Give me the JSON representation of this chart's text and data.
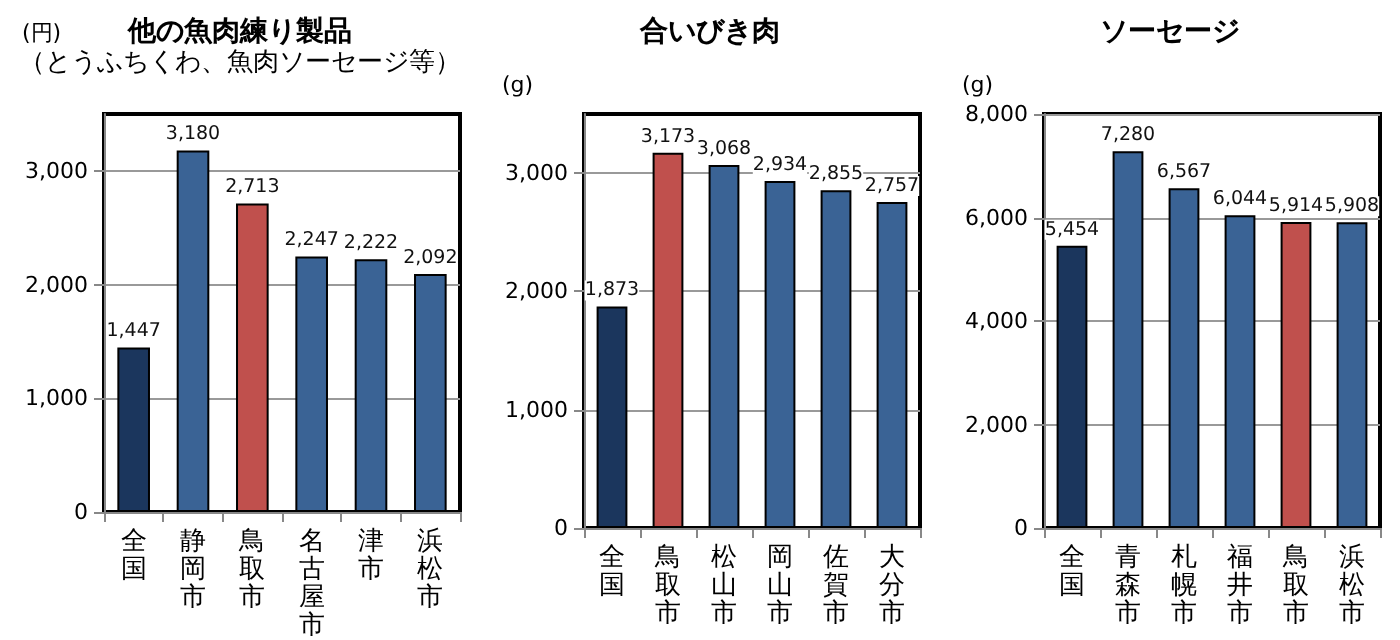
{
  "chart_data": [
    {
      "type": "bar",
      "title": "他の魚肉練り製品",
      "subtitle": "（とうふちくわ、魚肉ソーセージ等）",
      "ylabel": "(円)",
      "categories": [
        "全国",
        "静岡市",
        "鳥取市",
        "名古屋市",
        "津市",
        "浜松市"
      ],
      "values": [
        1447,
        3180,
        2713,
        2247,
        2222,
        2092
      ],
      "value_labels": [
        "1,447",
        "3,180",
        "2,713",
        "2,247",
        "2,222",
        "2,092"
      ],
      "colors": [
        "#1b365d",
        "#3a6395",
        "#c0504d",
        "#3a6395",
        "#3a6395",
        "#3a6395"
      ],
      "ylim": [
        0,
        3500
      ],
      "yticks": [
        {
          "value": 0,
          "label": "0"
        },
        {
          "value": 1000,
          "label": "1,000"
        },
        {
          "value": 2000,
          "label": "2,000"
        },
        {
          "value": 3000,
          "label": "3,000"
        }
      ],
      "grid": "y"
    },
    {
      "type": "bar",
      "title": "合いびき肉",
      "ylabel": "(g)",
      "categories": [
        "全国",
        "鳥取市",
        "松山市",
        "岡山市",
        "佐賀市",
        "大分市"
      ],
      "values": [
        1873,
        3173,
        3068,
        2934,
        2855,
        2757
      ],
      "value_labels": [
        "1,873",
        "3,173",
        "3,068",
        "2,934",
        "2,855",
        "2,757"
      ],
      "colors": [
        "#1b365d",
        "#c0504d",
        "#3a6395",
        "#3a6395",
        "#3a6395",
        "#3a6395"
      ],
      "ylim": [
        0,
        3500
      ],
      "yticks": [
        {
          "value": 0,
          "label": "0"
        },
        {
          "value": 1000,
          "label": "1,000"
        },
        {
          "value": 2000,
          "label": "2,000"
        },
        {
          "value": 3000,
          "label": "3,000"
        }
      ],
      "grid": "y"
    },
    {
      "type": "bar",
      "title": "ソーセージ",
      "ylabel": "(g)",
      "categories": [
        "全国",
        "青森市",
        "札幌市",
        "福井市",
        "鳥取市",
        "浜松市"
      ],
      "values": [
        5454,
        7280,
        6567,
        6044,
        5914,
        5908
      ],
      "value_labels": [
        "5,454",
        "7,280",
        "6,567",
        "6,044",
        "5,914",
        "5,908"
      ],
      "colors": [
        "#1b365d",
        "#3a6395",
        "#3a6395",
        "#3a6395",
        "#c0504d",
        "#3a6395"
      ],
      "ylim": [
        0,
        8000
      ],
      "yticks": [
        {
          "value": 0,
          "label": "0"
        },
        {
          "value": 2000,
          "label": "2,000"
        },
        {
          "value": 4000,
          "label": "4,000"
        },
        {
          "value": 6000,
          "label": "6,000"
        },
        {
          "value": 8000,
          "label": "8,000"
        }
      ],
      "grid": "y"
    }
  ]
}
